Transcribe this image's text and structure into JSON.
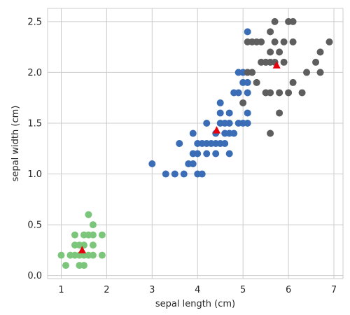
{
  "chart_data": {
    "type": "scatter",
    "title": "",
    "xlabel": "sepal length (cm)",
    "ylabel": "sepal width (cm)",
    "xlim": [
      0.7,
      7.2
    ],
    "ylim": [
      -0.03,
      2.63
    ],
    "xticks": [
      1,
      2,
      3,
      4,
      5,
      6,
      7
    ],
    "yticks": [
      0.0,
      0.5,
      1.0,
      1.5,
      2.0,
      2.5
    ],
    "grid": true,
    "legend": "none",
    "series": [
      {
        "color": "#7bc67b",
        "marker": "circle",
        "points": [
          [
            1.0,
            0.2
          ],
          [
            1.1,
            0.1
          ],
          [
            1.2,
            0.2
          ],
          [
            1.3,
            0.2
          ],
          [
            1.3,
            0.3
          ],
          [
            1.3,
            0.4
          ],
          [
            1.4,
            0.2
          ],
          [
            1.4,
            0.3
          ],
          [
            1.4,
            0.1
          ],
          [
            1.5,
            0.2
          ],
          [
            1.5,
            0.4
          ],
          [
            1.5,
            0.1
          ],
          [
            1.5,
            0.3
          ],
          [
            1.6,
            0.6
          ],
          [
            1.6,
            0.2
          ],
          [
            1.6,
            0.4
          ],
          [
            1.7,
            0.5
          ],
          [
            1.7,
            0.4
          ],
          [
            1.7,
            0.3
          ],
          [
            1.7,
            0.2
          ],
          [
            1.9,
            0.4
          ],
          [
            1.9,
            0.2
          ]
        ]
      },
      {
        "color": "#3a6db5",
        "marker": "circle",
        "points": [
          [
            3.0,
            1.1
          ],
          [
            3.3,
            1.0
          ],
          [
            3.5,
            1.0
          ],
          [
            3.6,
            1.3
          ],
          [
            3.7,
            1.0
          ],
          [
            3.8,
            1.1
          ],
          [
            3.9,
            1.1
          ],
          [
            3.9,
            1.2
          ],
          [
            3.9,
            1.4
          ],
          [
            4.0,
            1.0
          ],
          [
            4.0,
            1.2
          ],
          [
            4.0,
            1.3
          ],
          [
            4.1,
            1.0
          ],
          [
            4.1,
            1.3
          ],
          [
            4.2,
            1.2
          ],
          [
            4.2,
            1.3
          ],
          [
            4.2,
            1.5
          ],
          [
            4.3,
            1.3
          ],
          [
            4.4,
            1.2
          ],
          [
            4.4,
            1.3
          ],
          [
            4.4,
            1.4
          ],
          [
            4.5,
            1.3
          ],
          [
            4.5,
            1.5
          ],
          [
            4.5,
            1.6
          ],
          [
            4.5,
            1.7
          ],
          [
            4.6,
            1.3
          ],
          [
            4.6,
            1.4
          ],
          [
            4.6,
            1.5
          ],
          [
            4.7,
            1.2
          ],
          [
            4.7,
            1.4
          ],
          [
            4.7,
            1.5
          ],
          [
            4.7,
            1.6
          ],
          [
            4.8,
            1.4
          ],
          [
            4.8,
            1.8
          ],
          [
            4.9,
            1.5
          ],
          [
            4.9,
            1.8
          ],
          [
            4.9,
            2.0
          ],
          [
            5.0,
            1.5
          ],
          [
            5.0,
            1.9
          ],
          [
            5.0,
            2.0
          ],
          [
            5.1,
            1.5
          ],
          [
            5.1,
            1.6
          ],
          [
            5.1,
            1.8
          ],
          [
            5.1,
            1.9
          ],
          [
            5.1,
            2.4
          ]
        ]
      },
      {
        "color": "#5e5e5e",
        "marker": "circle",
        "points": [
          [
            5.0,
            1.7
          ],
          [
            5.1,
            2.0
          ],
          [
            5.1,
            2.3
          ],
          [
            5.2,
            2.0
          ],
          [
            5.2,
            2.3
          ],
          [
            5.3,
            1.9
          ],
          [
            5.3,
            2.3
          ],
          [
            5.4,
            2.1
          ],
          [
            5.4,
            2.3
          ],
          [
            5.5,
            1.8
          ],
          [
            5.5,
            2.1
          ],
          [
            5.6,
            1.4
          ],
          [
            5.6,
            1.8
          ],
          [
            5.6,
            2.1
          ],
          [
            5.6,
            2.2
          ],
          [
            5.6,
            2.4
          ],
          [
            5.7,
            2.1
          ],
          [
            5.7,
            2.3
          ],
          [
            5.7,
            2.5
          ],
          [
            5.8,
            1.6
          ],
          [
            5.8,
            1.8
          ],
          [
            5.8,
            2.2
          ],
          [
            5.9,
            2.1
          ],
          [
            5.9,
            2.3
          ],
          [
            6.0,
            1.8
          ],
          [
            6.0,
            2.5
          ],
          [
            6.1,
            1.9
          ],
          [
            6.1,
            2.3
          ],
          [
            6.1,
            2.5
          ],
          [
            6.3,
            1.8
          ],
          [
            6.4,
            2.0
          ],
          [
            6.6,
            2.1
          ],
          [
            6.7,
            2.0
          ],
          [
            6.7,
            2.2
          ],
          [
            6.9,
            2.3
          ]
        ]
      }
    ],
    "centroids": {
      "color": "#e8000b",
      "marker": "triangle",
      "points": [
        [
          1.46,
          0.25
        ],
        [
          4.42,
          1.43
        ],
        [
          5.74,
          2.07
        ]
      ]
    }
  }
}
